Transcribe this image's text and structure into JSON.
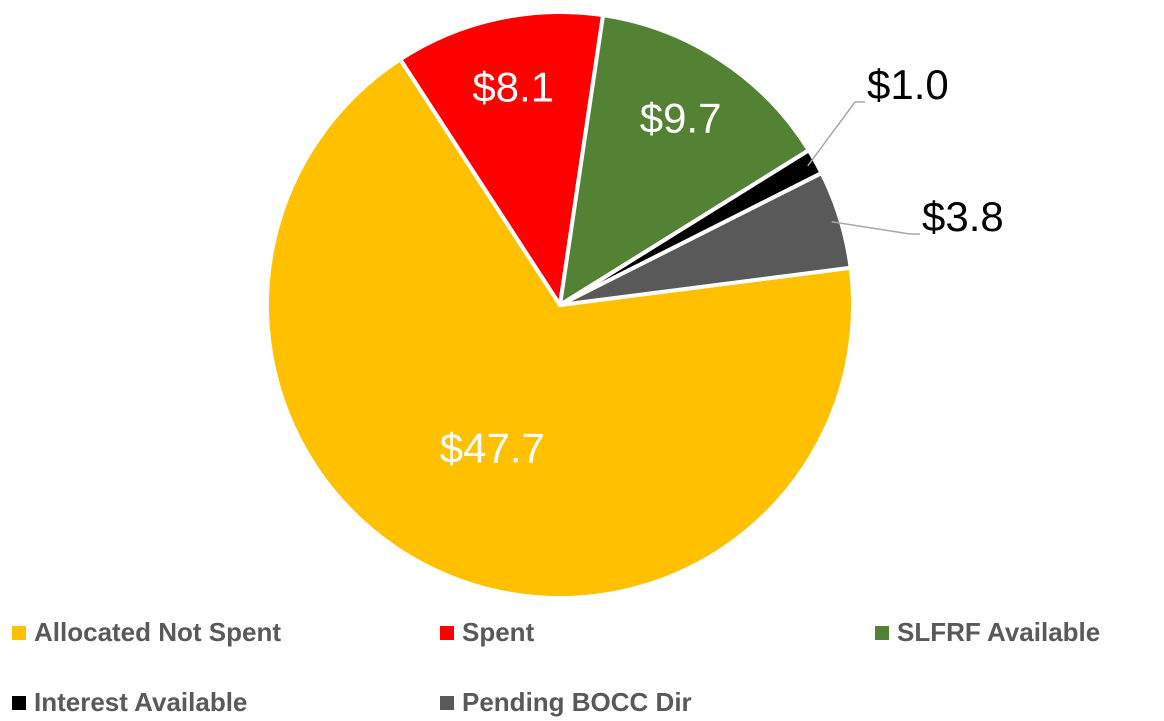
{
  "chart_data": {
    "type": "pie",
    "categories": [
      "Allocated Not Spent",
      "Spent",
      "SLFRF Available",
      "Interest Available",
      "Pending BOCC Dir"
    ],
    "values": [
      47.7,
      8.1,
      9.7,
      1.0,
      3.8
    ],
    "value_labels": [
      "$47.7",
      "$8.1",
      "$9.7",
      "$1.0",
      "$3.8"
    ],
    "colors": [
      "#ffc000",
      "#ff0000",
      "#548235",
      "#000000",
      "#595959"
    ],
    "legend": "bottom"
  }
}
